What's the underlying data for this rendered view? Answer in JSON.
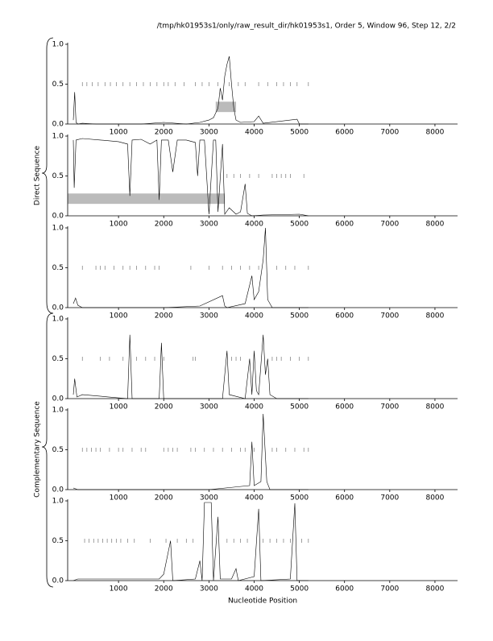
{
  "header": {
    "title": "/tmp/hk01953s1/only/raw_result_dir/hk01953s1, Order 5, Window 96, Step 12, 2/2"
  },
  "group_labels": [
    "Direct Sequence",
    "Complementary Sequence"
  ],
  "x_label": "Nucleotide Position",
  "chart_data": [
    {
      "type": "line",
      "xlim": [
        -125,
        8500
      ],
      "ylim": [
        0,
        1
      ],
      "xticks": [
        1000,
        2000,
        3000,
        4000,
        5000,
        6000,
        7000,
        8000
      ],
      "yticks": [
        {
          "value": 0,
          "label": "0.0"
        },
        {
          "value": 0.5,
          "label": "0.5"
        },
        {
          "value": 1,
          "label": "1.0"
        }
      ],
      "x": [
        0,
        30,
        60,
        100,
        200,
        500,
        1000,
        1500,
        2000,
        2500,
        2800,
        3000,
        3100,
        3200,
        3250,
        3300,
        3350,
        3400,
        3450,
        3500,
        3550,
        3600,
        3700,
        4000,
        4100,
        4200,
        4950,
        5000,
        5200
      ],
      "values": [
        0.05,
        0.4,
        0.02,
        0,
        0.01,
        0,
        0,
        0,
        0.02,
        0,
        0.02,
        0.05,
        0.08,
        0.2,
        0.45,
        0.3,
        0.6,
        0.75,
        0.85,
        0.5,
        0.2,
        0.05,
        0.02,
        0.03,
        0.1,
        0.01,
        0.06,
        0,
        0
      ],
      "stop_level": 0.5,
      "stops": [
        200,
        300,
        420,
        550,
        700,
        820,
        950,
        1100,
        1250,
        1400,
        1550,
        1700,
        1850,
        2000,
        2100,
        2250,
        2450,
        2700,
        2850,
        3000,
        3200,
        3450,
        3650,
        3800,
        4100,
        4300,
        4500,
        4650,
        4800,
        4950,
        5200
      ],
      "highlight": {
        "x": [
          3150,
          3600
        ],
        "y": [
          0.15,
          0.28
        ]
      }
    },
    {
      "type": "line",
      "xlim": [
        -125,
        8500
      ],
      "ylim": [
        0,
        1
      ],
      "xticks": [
        1000,
        2000,
        3000,
        4000,
        5000,
        6000,
        7000,
        8000
      ],
      "yticks": [
        {
          "value": 0,
          "label": "0.0"
        },
        {
          "value": 0.5,
          "label": "0.5"
        },
        {
          "value": 1,
          "label": "1.0"
        }
      ],
      "x": [
        0,
        20,
        60,
        200,
        600,
        1000,
        1200,
        1250,
        1300,
        1500,
        1700,
        1850,
        1900,
        1950,
        2100,
        2200,
        2300,
        2500,
        2700,
        2750,
        2800,
        2900,
        3000,
        3100,
        3150,
        3200,
        3300,
        3350,
        3450,
        3600,
        3700,
        3800,
        3850,
        3950,
        4200,
        5000,
        5200
      ],
      "values": [
        0.95,
        0.35,
        0.95,
        0.97,
        0.95,
        0.93,
        0.9,
        0.25,
        0.95,
        0.96,
        0.9,
        0.95,
        0.2,
        0.95,
        0.95,
        0.55,
        0.95,
        0.95,
        0.92,
        0.5,
        0.95,
        0.95,
        0.02,
        0.95,
        0.95,
        0.05,
        0.9,
        0.02,
        0.1,
        0.02,
        0.05,
        0.4,
        0.03,
        0,
        0.01,
        0.02,
        0
      ],
      "stop_level": 0.5,
      "stops": [
        3400,
        3550,
        3700,
        3900,
        4100,
        4400,
        4500,
        4600,
        4700,
        4800,
        5100
      ],
      "highlight": {
        "x": [
          -125,
          3350
        ],
        "y": [
          0.15,
          0.28
        ]
      }
    },
    {
      "type": "line",
      "xlim": [
        -125,
        8500
      ],
      "ylim": [
        0,
        1
      ],
      "xticks": [
        1000,
        2000,
        3000,
        4000,
        5000,
        6000,
        7000,
        8000
      ],
      "yticks": [
        {
          "value": 0,
          "label": "0.0"
        },
        {
          "value": 0.5,
          "label": "0.5"
        },
        {
          "value": 1,
          "label": "1.0"
        }
      ],
      "x": [
        0,
        50,
        100,
        200,
        1000,
        2000,
        2800,
        3300,
        3350,
        3400,
        3800,
        3950,
        4000,
        4100,
        4200,
        4250,
        4300,
        4400,
        5200
      ],
      "values": [
        0.05,
        0.12,
        0.03,
        0,
        0,
        0,
        0.02,
        0.15,
        0.02,
        0,
        0.05,
        0.4,
        0.1,
        0.2,
        0.6,
        1.0,
        0.1,
        0,
        0
      ],
      "stop_level": 0.5,
      "stops": [
        200,
        500,
        600,
        700,
        900,
        1100,
        1250,
        1400,
        1600,
        1800,
        1900,
        2600,
        3000,
        3300,
        3500,
        3700,
        3900,
        4100,
        4500,
        4700,
        4900,
        5200
      ]
    },
    {
      "type": "line",
      "xlim": [
        -125,
        8500
      ],
      "ylim": [
        0,
        1
      ],
      "xticks": [
        1000,
        2000,
        3000,
        4000,
        5000,
        6000,
        7000,
        8000
      ],
      "yticks": [
        {
          "value": 0,
          "label": "0.0"
        },
        {
          "value": 0.5,
          "label": "0.5"
        },
        {
          "value": 1,
          "label": "1.0"
        }
      ],
      "x": [
        0,
        30,
        80,
        200,
        1200,
        1250,
        1300,
        1900,
        1950,
        2000,
        3300,
        3400,
        3450,
        3800,
        3900,
        3950,
        4000,
        4050,
        4100,
        4200,
        4250,
        4300,
        4350,
        4500,
        5200
      ],
      "values": [
        0.05,
        0.25,
        0.02,
        0.05,
        0,
        0.8,
        0,
        0,
        0.7,
        0,
        0,
        0.6,
        0.05,
        0,
        0.5,
        0.05,
        0.6,
        0.1,
        0.05,
        0.8,
        0.3,
        0.5,
        0.05,
        0,
        0
      ],
      "stop_level": 0.5,
      "stops": [
        200,
        600,
        800,
        1100,
        1400,
        1600,
        1800,
        2000,
        2650,
        2700,
        3500,
        3600,
        3700,
        4400,
        4500,
        4600,
        4800,
        5000,
        5200
      ]
    },
    {
      "type": "line",
      "xlim": [
        -125,
        8500
      ],
      "ylim": [
        0,
        1
      ],
      "xticks": [
        1000,
        2000,
        3000,
        4000,
        5000,
        6000,
        7000,
        8000
      ],
      "yticks": [
        {
          "value": 0,
          "label": "0.0"
        },
        {
          "value": 0.5,
          "label": "0.5"
        },
        {
          "value": 1,
          "label": "1.0"
        }
      ],
      "x": [
        0,
        100,
        1000,
        3000,
        3900,
        3950,
        4000,
        4150,
        4200,
        4280,
        4350,
        5200
      ],
      "values": [
        0.02,
        0,
        0,
        0,
        0.05,
        0.6,
        0.05,
        0.1,
        0.95,
        0.1,
        0,
        0
      ],
      "stop_level": 0.5,
      "stops": [
        200,
        300,
        400,
        500,
        600,
        800,
        1000,
        1100,
        1300,
        1500,
        1600,
        2000,
        2100,
        2200,
        2300,
        2600,
        2700,
        2900,
        3100,
        3300,
        3500,
        3700,
        3800,
        4000,
        4400,
        4500,
        4700,
        4900,
        5100,
        5200
      ]
    },
    {
      "type": "line",
      "xlim": [
        -125,
        8500
      ],
      "ylim": [
        0,
        1
      ],
      "xticks": [
        1000,
        2000,
        3000,
        4000,
        5000,
        6000,
        7000,
        8000
      ],
      "yticks": [
        {
          "value": 0,
          "label": "0.0"
        },
        {
          "value": 0.5,
          "label": "0.5"
        },
        {
          "value": 1,
          "label": "1.0"
        }
      ],
      "x": [
        0,
        100,
        1900,
        2000,
        2150,
        2200,
        2700,
        2800,
        2850,
        2900,
        3050,
        3100,
        3200,
        3250,
        3500,
        3600,
        3650,
        4000,
        4100,
        4150,
        4800,
        4900,
        4950,
        5200
      ],
      "values": [
        0,
        0.02,
        0.02,
        0.08,
        0.5,
        0,
        0.02,
        0.25,
        0,
        0.98,
        0.98,
        0,
        0.8,
        0.02,
        0.02,
        0.15,
        0,
        0.05,
        0.9,
        0,
        0.02,
        0.97,
        0,
        0
      ],
      "stop_level": 0.5,
      "stops": [
        250,
        350,
        450,
        550,
        650,
        750,
        850,
        950,
        1050,
        1200,
        1350,
        1700,
        2050,
        2300,
        2500,
        2650,
        3400,
        3550,
        3700,
        3850,
        4200,
        4350,
        4500,
        4650,
        4800,
        5050,
        5200
      ]
    }
  ]
}
